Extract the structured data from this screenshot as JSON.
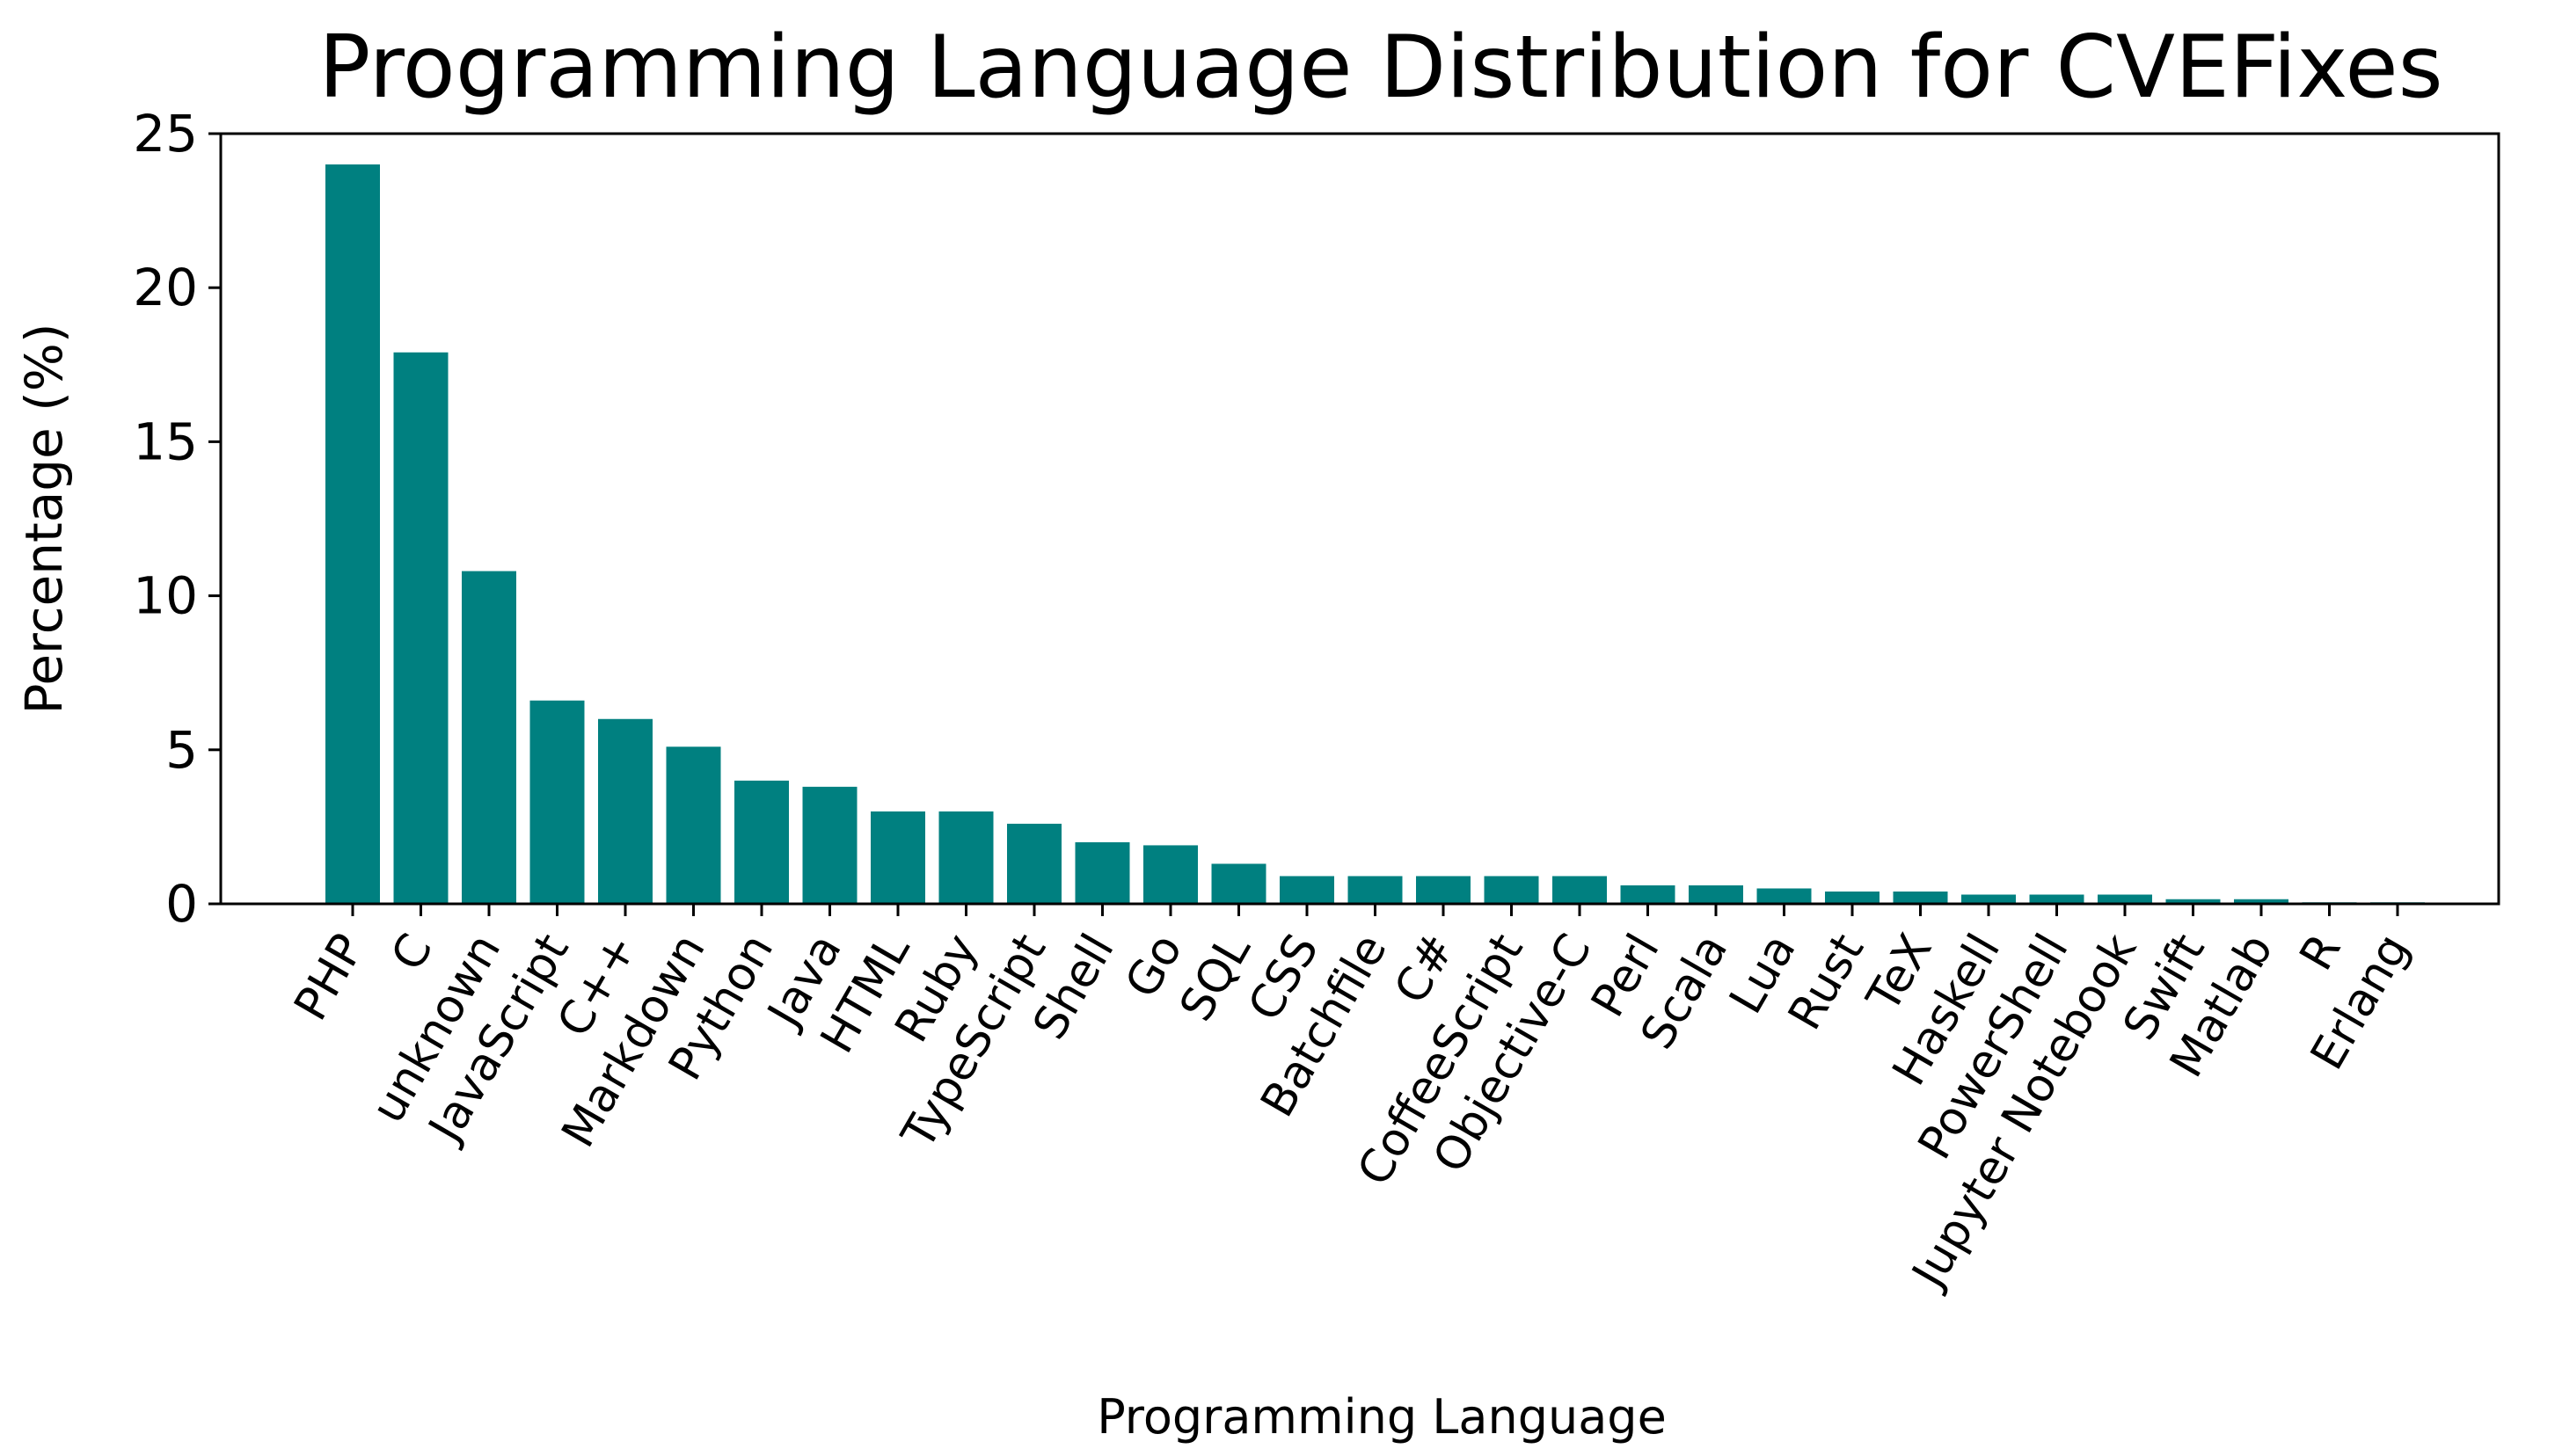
{
  "chart_data": {
    "type": "bar",
    "title": "Programming Language Distribution for CVEFixes",
    "xlabel": "Programming Language",
    "ylabel": "Percentage (%)",
    "ylim": [
      0,
      25
    ],
    "yticks": [
      "0",
      "5",
      "10",
      "15",
      "20",
      "25"
    ],
    "bar_color": "#008080",
    "grid": false,
    "categories": [
      "PHP",
      "C",
      "unknown",
      "JavaScript",
      "C++",
      "Markdown",
      "Python",
      "Java",
      "HTML",
      "Ruby",
      "TypeScript",
      "Shell",
      "Go",
      "SQL",
      "CSS",
      "Batchfile",
      "C#",
      "CoffeeScript",
      "Objective-C",
      "Perl",
      "Scala",
      "Lua",
      "Rust",
      "TeX",
      "Haskell",
      "PowerShell",
      "Jupyter Notebook",
      "Swift",
      "Matlab",
      "R",
      "Erlang"
    ],
    "values": [
      24.0,
      17.9,
      10.8,
      6.6,
      6.0,
      5.1,
      4.0,
      3.8,
      3.0,
      3.0,
      2.6,
      2.0,
      1.9,
      1.3,
      0.9,
      0.9,
      0.9,
      0.9,
      0.9,
      0.6,
      0.6,
      0.5,
      0.4,
      0.4,
      0.3,
      0.3,
      0.3,
      0.15,
      0.15,
      0.05,
      0.05
    ]
  }
}
